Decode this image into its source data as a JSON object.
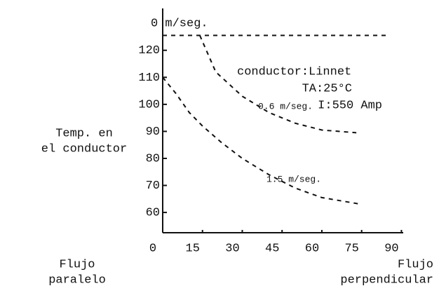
{
  "chart_data": {
    "type": "line",
    "y_label_lines": [
      "Temp. en",
      "el conductor"
    ],
    "x_label_left": [
      "Flujo",
      "paralelo"
    ],
    "x_label_right": [
      "Flujo",
      "perpendicular"
    ],
    "annotations": [
      "conductor:Linnet",
      "TA:25°C",
      "I:550 Amp"
    ],
    "xlim": [
      0,
      92
    ],
    "xticks": [
      0,
      15,
      30,
      45,
      60,
      75,
      90
    ],
    "ylim": [
      52.5,
      135.5
    ],
    "yticks": [
      60,
      70,
      80,
      90,
      100,
      110,
      120
    ],
    "series": [
      {
        "name": "0 m/seg.",
        "color": "#111111",
        "x": [
          0,
          85
        ],
        "values": [
          125.5,
          125.5
        ]
      },
      {
        "name": "0.6 m/seg.",
        "color": "#111111",
        "x": [
          14,
          20,
          30,
          40,
          50,
          60,
          73
        ],
        "values": [
          125.5,
          112,
          103,
          97,
          93,
          90.5,
          89.5
        ]
      },
      {
        "name": "1.5 m/seg.",
        "color": "#111111",
        "x": [
          0,
          5,
          10,
          15,
          22,
          30,
          40,
          50,
          60,
          75
        ],
        "values": [
          110,
          104,
          97,
          92,
          86,
          80,
          74,
          69,
          65.5,
          63
        ]
      }
    ]
  }
}
